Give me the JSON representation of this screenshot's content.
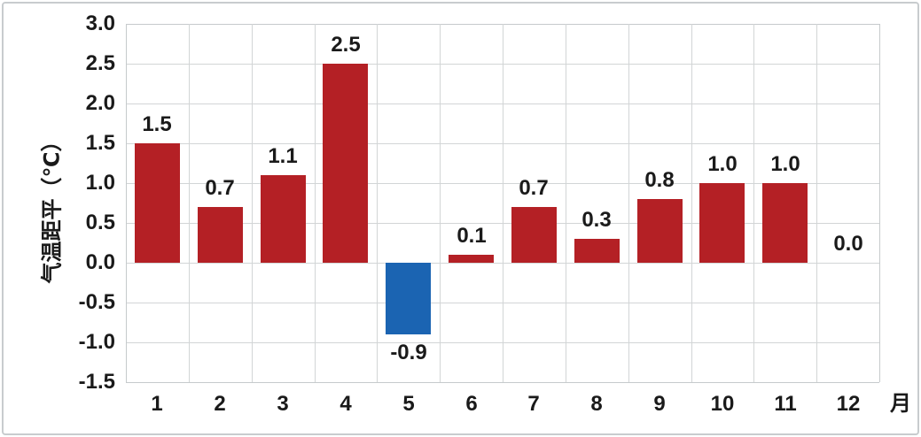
{
  "chart_data": {
    "type": "bar",
    "title": "",
    "categories": [
      "1",
      "2",
      "3",
      "4",
      "5",
      "6",
      "7",
      "8",
      "9",
      "10",
      "11",
      "12"
    ],
    "values": [
      1.5,
      0.7,
      1.1,
      2.5,
      -0.9,
      0.1,
      0.7,
      0.3,
      0.8,
      1.0,
      1.0,
      0.0
    ],
    "data_labels": [
      "1.5",
      "0.7",
      "1.1",
      "2.5",
      "-0.9",
      "0.1",
      "0.7",
      "0.3",
      "0.8",
      "1.0",
      "1.0",
      "0.0"
    ],
    "xlabel": "月",
    "ylabel": "气温距平（℃）",
    "ylim": [
      -1.5,
      3.0
    ],
    "ytick_step": 0.5,
    "yticks": [
      "3.0",
      "2.5",
      "2.0",
      "1.5",
      "1.0",
      "0.5",
      "0.0",
      "-0.5",
      "-1.0",
      "-1.5"
    ],
    "grid": true,
    "legend": "none",
    "colors": {
      "positive_bar": "#b42025",
      "negative_bar": "#1b64b2",
      "gridline": "#d2d5d6",
      "plot_border": "#c6cacc",
      "text": "#1a1a1a",
      "frame": "#c8ccce"
    }
  }
}
